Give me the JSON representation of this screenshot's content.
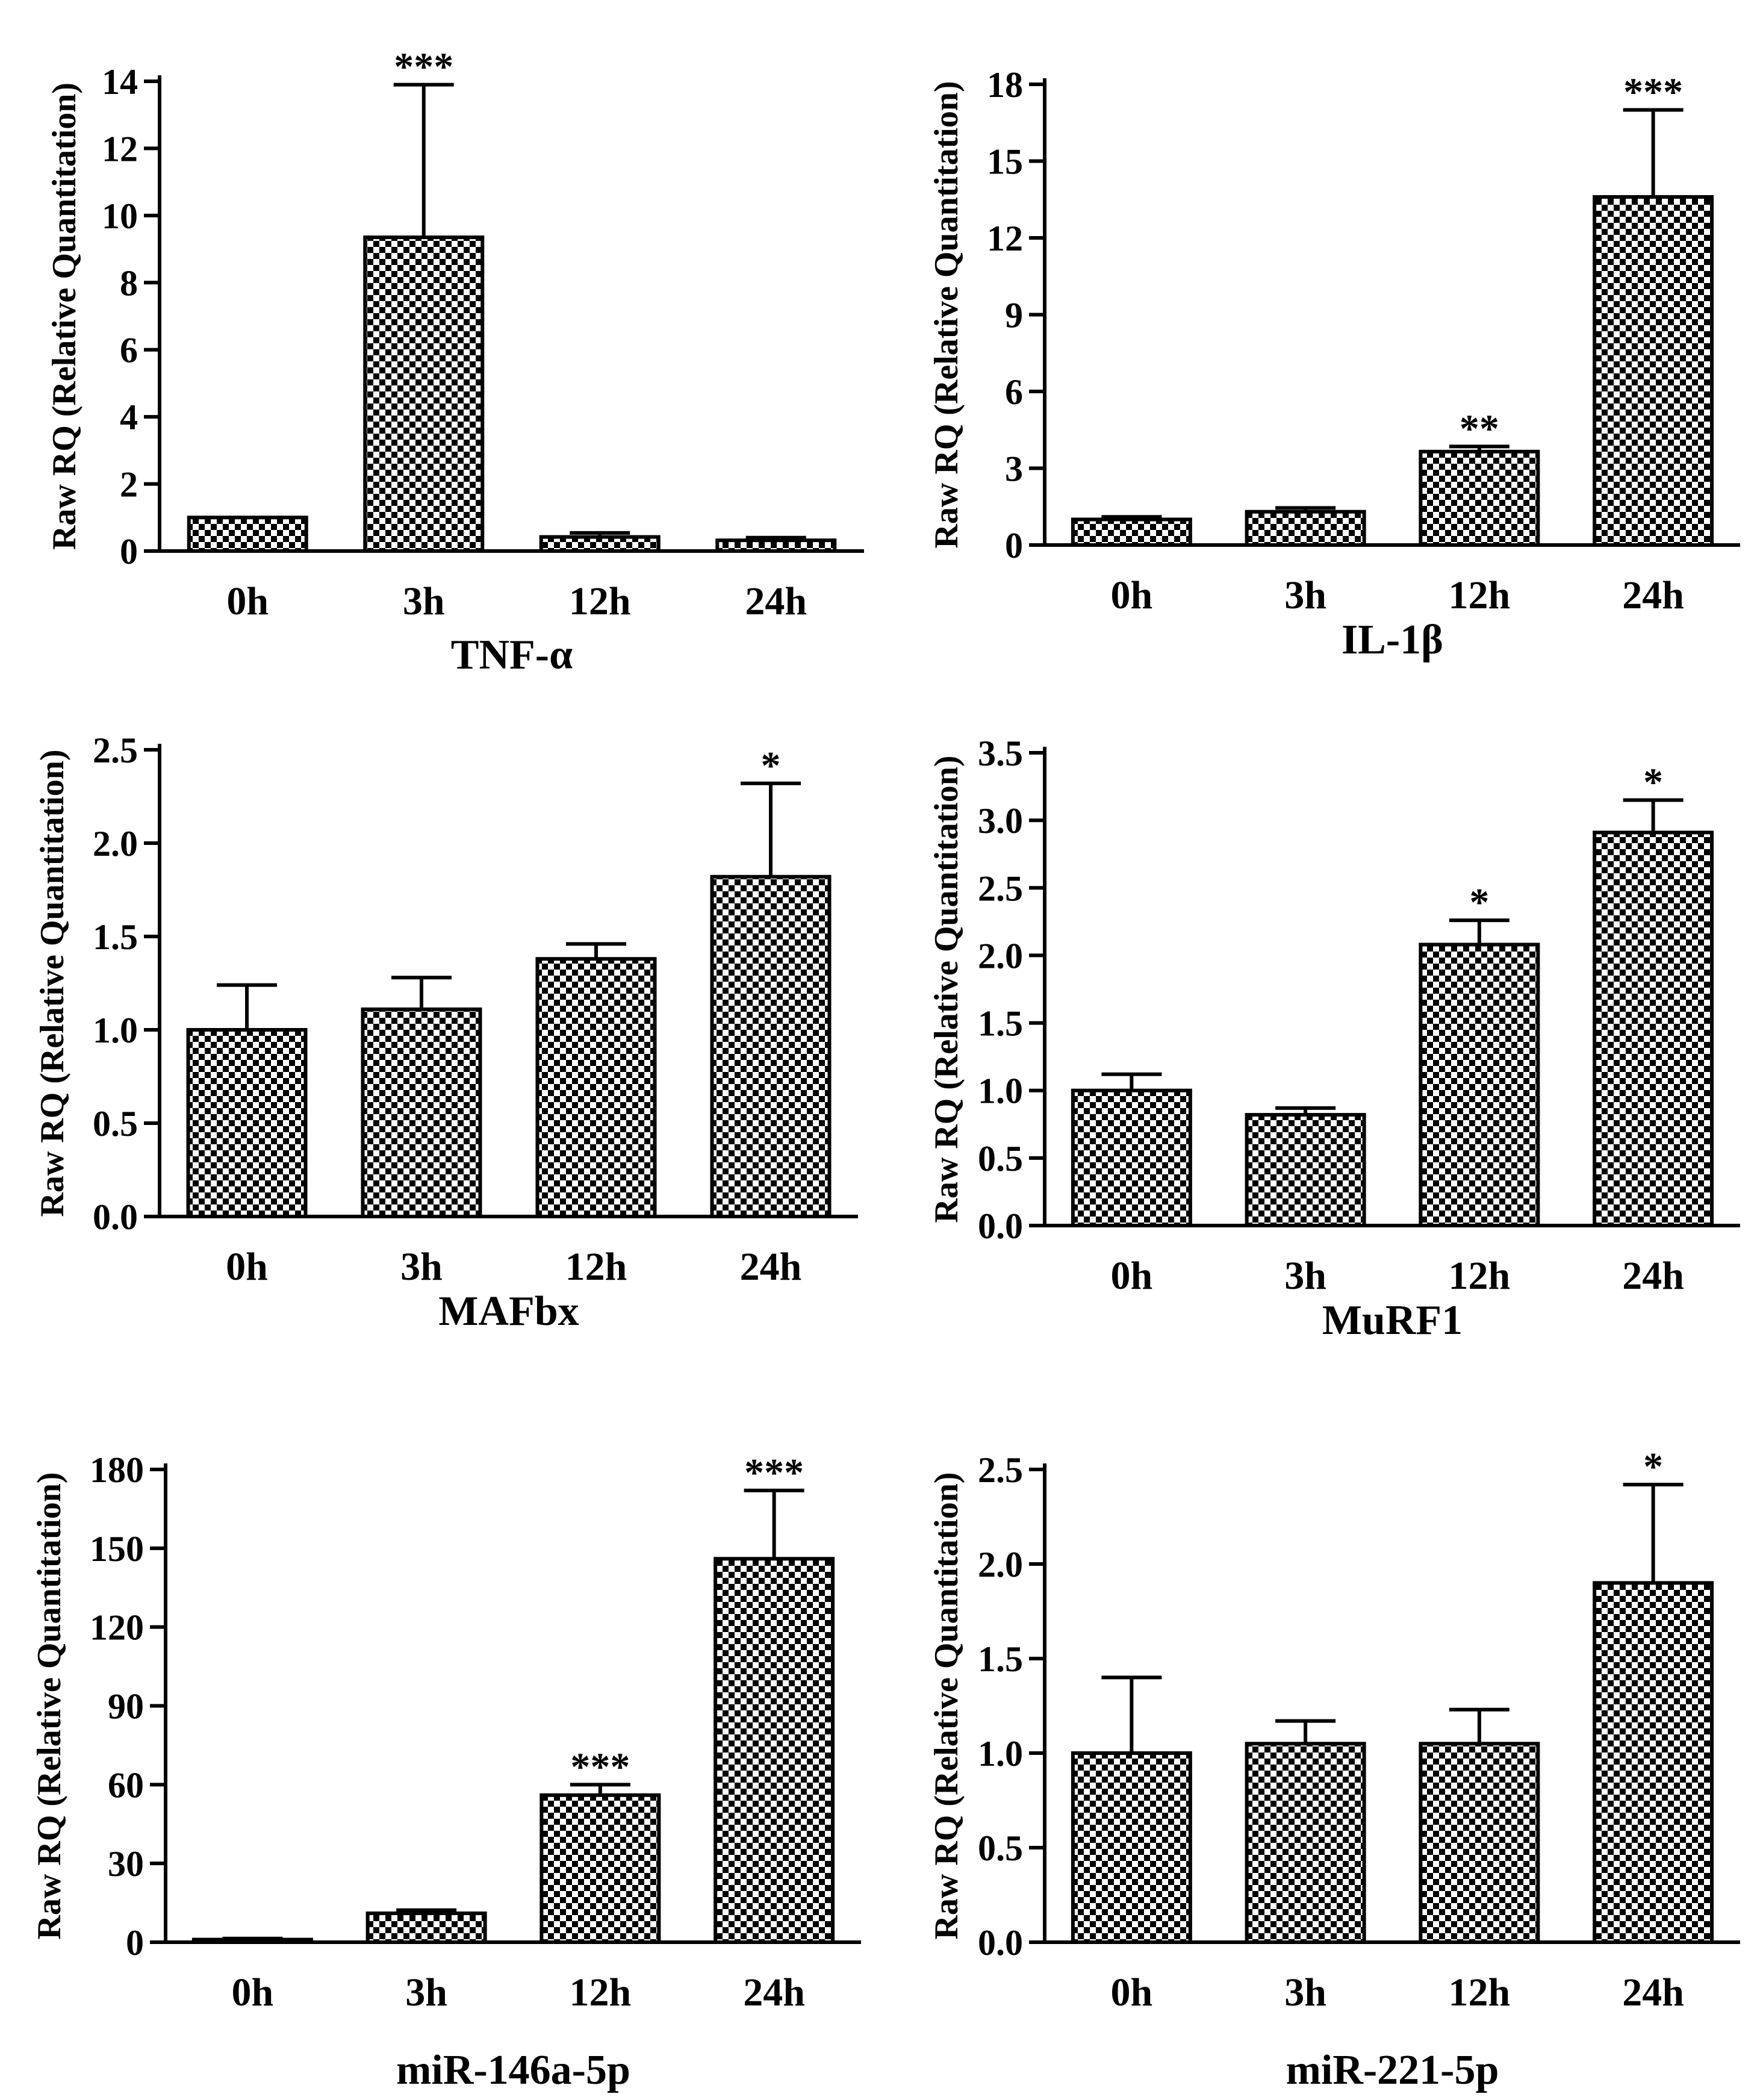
{
  "chart_data": [
    {
      "type": "bar",
      "title": "TNF-α",
      "ylabel": "Raw  RQ (Relative Quantitation)",
      "categories": [
        "0h",
        "3h",
        "12h",
        "24h"
      ],
      "values": [
        1.0,
        9.35,
        0.42,
        0.32
      ],
      "errors": [
        0.0,
        4.55,
        0.12,
        0.08
      ],
      "significance": [
        "",
        "***",
        "",
        ""
      ],
      "ylim": [
        0,
        14
      ],
      "yticks": [
        "0",
        "2",
        "4",
        "6",
        "8",
        "10",
        "12",
        "14"
      ],
      "grid": false
    },
    {
      "type": "bar",
      "title": "IL-1β",
      "ylabel": "Raw  RQ (Relative Quantitation)",
      "categories": [
        "0h",
        "3h",
        "12h",
        "24h"
      ],
      "values": [
        1.0,
        1.3,
        3.65,
        13.6
      ],
      "errors": [
        0.1,
        0.15,
        0.2,
        3.4
      ],
      "significance": [
        "",
        "",
        "**",
        "***"
      ],
      "ylim": [
        0,
        18
      ],
      "yticks": [
        "0",
        "3",
        "6",
        "9",
        "12",
        "15",
        "18"
      ],
      "grid": false
    },
    {
      "type": "bar",
      "title": "MAFbx",
      "ylabel": "Raw  RQ (Relative Quantitation)",
      "categories": [
        "0h",
        "3h",
        "12h",
        "24h"
      ],
      "values": [
        1.0,
        1.11,
        1.38,
        1.82
      ],
      "errors": [
        0.24,
        0.17,
        0.08,
        0.5
      ],
      "significance": [
        "",
        "",
        "",
        "*"
      ],
      "ylim": [
        0,
        2.5
      ],
      "yticks": [
        "0.0",
        "0.5",
        "1.0",
        "1.5",
        "2.0",
        "2.5"
      ],
      "grid": false
    },
    {
      "type": "bar",
      "title": "MuRF1",
      "ylabel": "Raw  RQ (Relative Quantitation)",
      "categories": [
        "0h",
        "3h",
        "12h",
        "24h"
      ],
      "values": [
        1.0,
        0.82,
        2.08,
        2.91
      ],
      "errors": [
        0.12,
        0.05,
        0.18,
        0.24
      ],
      "significance": [
        "",
        "",
        "*",
        "*"
      ],
      "ylim": [
        0,
        3.5
      ],
      "yticks": [
        "0.0",
        "0.5",
        "1.0",
        "1.5",
        "2.0",
        "2.5",
        "3.0",
        "3.5"
      ],
      "grid": false
    },
    {
      "type": "bar",
      "title": "miR-146a-5p",
      "ylabel": "Raw  RQ (Relative Quantitation)",
      "categories": [
        "0h",
        "3h",
        "12h",
        "24h"
      ],
      "values": [
        1.0,
        11.0,
        56.0,
        146.0
      ],
      "errors": [
        0.4,
        1.2,
        4.0,
        26.0
      ],
      "significance": [
        "",
        "",
        "***",
        "***"
      ],
      "ylim": [
        0,
        180
      ],
      "yticks": [
        "0",
        "30",
        "60",
        "90",
        "120",
        "150",
        "180"
      ],
      "grid": false
    },
    {
      "type": "bar",
      "title": "miR-221-5p",
      "ylabel": "Raw  RQ (Relative Quantitation)",
      "categories": [
        "0h",
        "3h",
        "12h",
        "24h"
      ],
      "values": [
        1.0,
        1.05,
        1.05,
        1.9
      ],
      "errors": [
        0.4,
        0.12,
        0.18,
        0.52
      ],
      "significance": [
        "",
        "",
        "",
        "*"
      ],
      "ylim": [
        0,
        2.5
      ],
      "yticks": [
        "0.0",
        "0.5",
        "1.0",
        "1.5",
        "2.0",
        "2.5"
      ],
      "grid": false
    }
  ]
}
